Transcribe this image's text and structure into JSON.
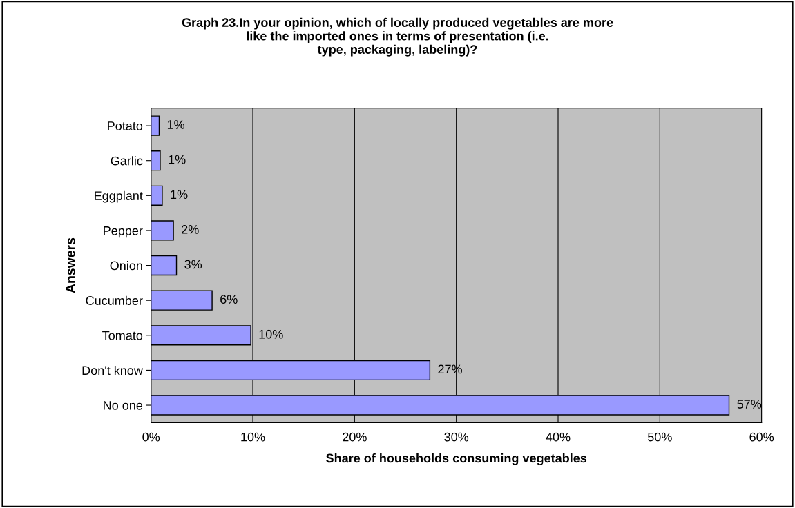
{
  "chart_data": {
    "type": "bar",
    "orientation": "horizontal",
    "title": "Graph 23.In your opinion, which of locally produced vegetables are more\nlike the imported ones in terms of presentation (i.e.\ntype, packaging, labeling)?",
    "xlabel": "Share of households consuming vegetables",
    "ylabel": "Answers",
    "categories": [
      "Potato",
      "Garlic",
      "Eggplant",
      "Pepper",
      "Onion",
      "Cucumber",
      "Tomato",
      "Don't know",
      "No one"
    ],
    "values": [
      0.8,
      0.9,
      1.1,
      2.2,
      2.5,
      6.0,
      9.8,
      27.4,
      56.8
    ],
    "value_labels": [
      "1%",
      "1%",
      "1%",
      "2%",
      "3%",
      "6%",
      "10%",
      "27%",
      "57%"
    ],
    "color": "#9999ff",
    "xlim": [
      0,
      60
    ],
    "xticks": [
      {
        "value": 0,
        "label": "0%"
      },
      {
        "value": 10,
        "label": "10%"
      },
      {
        "value": 20,
        "label": "20%"
      },
      {
        "value": 30,
        "label": "30%"
      },
      {
        "value": 40,
        "label": "40%"
      },
      {
        "value": 50,
        "label": "50%"
      },
      {
        "value": 60,
        "label": "60%"
      }
    ],
    "grid": "x",
    "legend": false
  }
}
